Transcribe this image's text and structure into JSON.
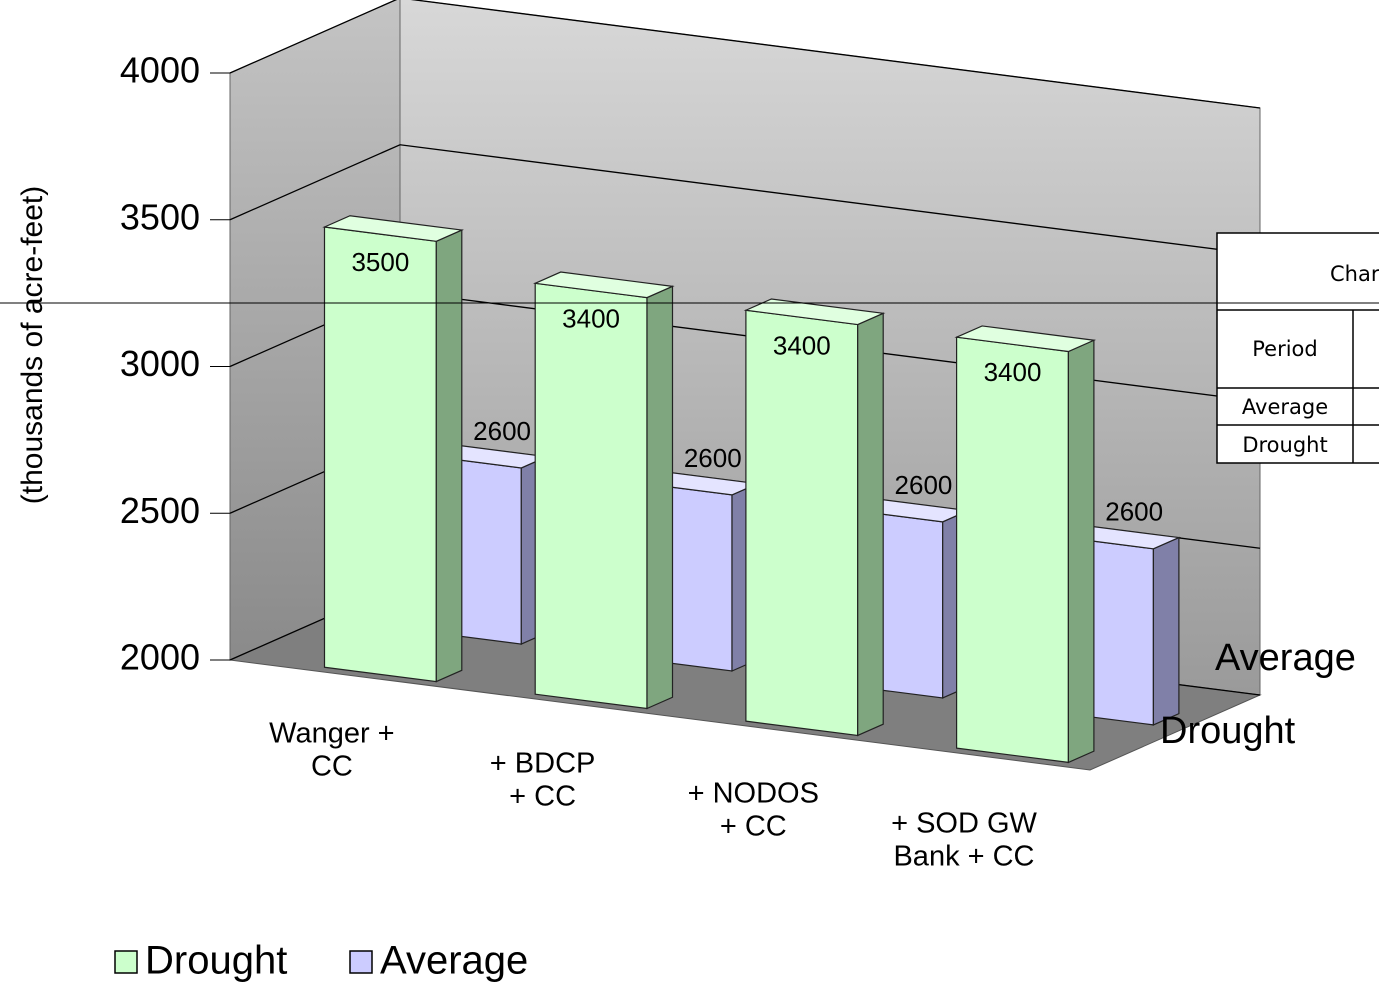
{
  "chart_data": {
    "type": "bar3d",
    "y_axis_label": "(thousands of acre-feet)",
    "categories": [
      [
        "Wanger +",
        "CC"
      ],
      [
        "+  BDCP",
        "+ CC"
      ],
      [
        "+  NODOS",
        "+ CC"
      ],
      [
        "+  SOD GW",
        "Bank + CC"
      ]
    ],
    "series": [
      {
        "name": "Drought",
        "color": "#ccffcc",
        "values": [
          3500,
          3400,
          3400,
          3400
        ]
      },
      {
        "name": "Average",
        "color": "#ccccff",
        "values": [
          2600,
          2600,
          2600,
          2600
        ]
      }
    ],
    "depth_labels": [
      "Average",
      "Drought"
    ],
    "ylim": [
      2000,
      4000
    ],
    "yticks": [
      2000,
      2500,
      3000,
      3500,
      4000
    ],
    "grid": true,
    "legend": "bottom"
  },
  "table": {
    "title": "Char",
    "header": "Period",
    "rows": [
      "Average",
      "Drought"
    ]
  }
}
